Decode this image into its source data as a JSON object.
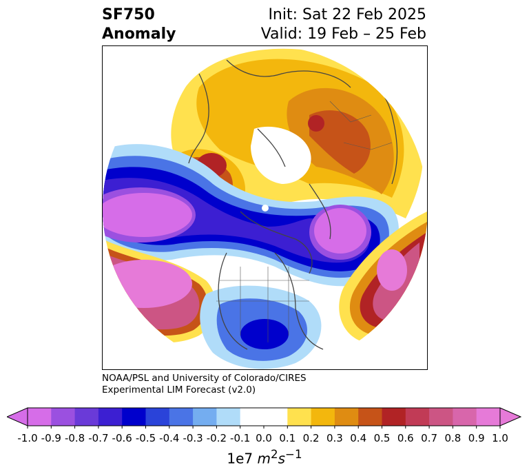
{
  "title": {
    "line1": "SF750",
    "line2": "Anomaly",
    "init": "Init: Sat 22 Feb 2025",
    "valid": "Valid: 19 Feb – 25 Feb"
  },
  "credit": {
    "line1": "NOAA/PSL and University of Colorado/CIRES",
    "line2": "Experimental LIM Forecast (v2.0)"
  },
  "colorbar": {
    "ticks": [
      "-1.0",
      "-0.9",
      "-0.8",
      "-0.7",
      "-0.6",
      "-0.5",
      "-0.4",
      "-0.3",
      "-0.2",
      "-0.1",
      "0.0",
      "0.1",
      "0.2",
      "0.3",
      "0.4",
      "0.5",
      "0.6",
      "0.7",
      "0.8",
      "0.9",
      "1.0"
    ],
    "colors": [
      "#d66de8",
      "#9b50e0",
      "#6a3ad8",
      "#3c1fd2",
      "#0000cc",
      "#2a43d9",
      "#4a74e6",
      "#74adf0",
      "#b0dcf9",
      "#ffffff",
      "#ffffff",
      "#ffe14e",
      "#f3b70d",
      "#df8c12",
      "#c65318",
      "#b12325",
      "#c13b56",
      "#cc5584",
      "#d866ab",
      "#e67ad8"
    ],
    "extend_low_color": "#d66de8",
    "extend_high_color": "#e67ad8",
    "units_base": "1e7 ",
    "units_m": "m",
    "units_m_exp": "2",
    "units_s": "s",
    "units_s_exp": "−1"
  }
}
